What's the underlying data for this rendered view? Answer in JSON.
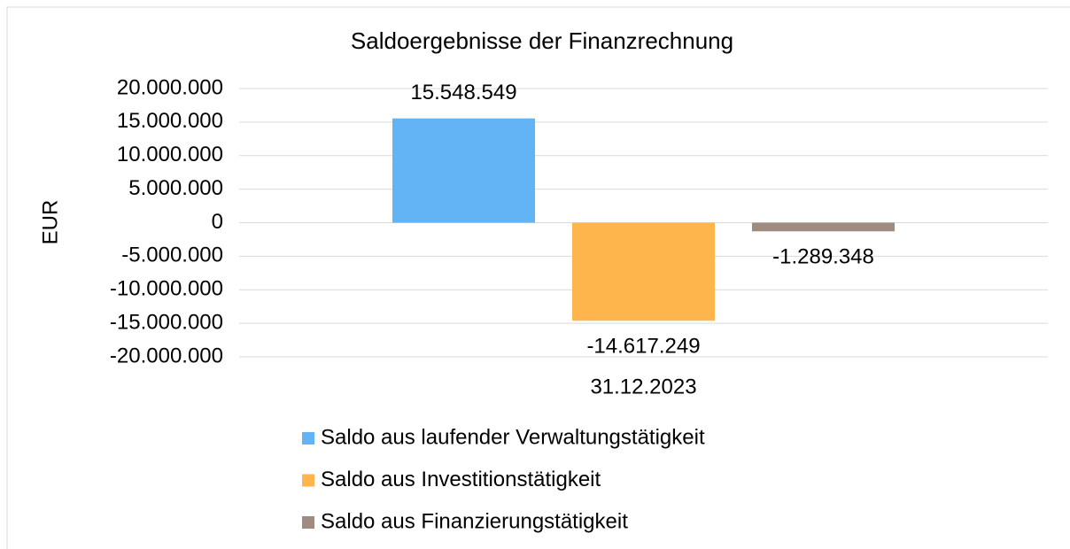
{
  "chart_data": {
    "type": "bar",
    "title": "Saldoergebnisse der Finanzrechnung",
    "ylabel": "EUR",
    "categories": [
      "31.12.2023"
    ],
    "series": [
      {
        "name": "Saldo aus laufender Verwaltungstätigkeit",
        "color": "#63b4f5",
        "values": [
          15548549
        ],
        "value_labels": [
          "15.548.549"
        ]
      },
      {
        "name": "Saldo aus Investitionstätigkeit",
        "color": "#fdb54c",
        "values": [
          -14617249
        ],
        "value_labels": [
          "-14.617.249"
        ]
      },
      {
        "name": "Saldo aus Finanzierungstätigkeit",
        "color": "#a08b80",
        "values": [
          -1289348
        ],
        "value_labels": [
          "-1.289.348"
        ]
      }
    ],
    "ylim": [
      -20000000,
      20000000
    ],
    "yticks": [
      {
        "value": -20000000,
        "label": "-20.000.000"
      },
      {
        "value": -15000000,
        "label": "-15.000.000"
      },
      {
        "value": -10000000,
        "label": "-10.000.000"
      },
      {
        "value": -5000000,
        "label": "-5.000.000"
      },
      0,
      {
        "value": 5000000,
        "label": "5.000.000"
      },
      {
        "value": 10000000,
        "label": "10.000.000"
      },
      {
        "value": 15000000,
        "label": "15.000.000"
      },
      {
        "value": 20000000,
        "label": "20.000.000"
      }
    ],
    "grid": true,
    "legend": "bottom"
  }
}
